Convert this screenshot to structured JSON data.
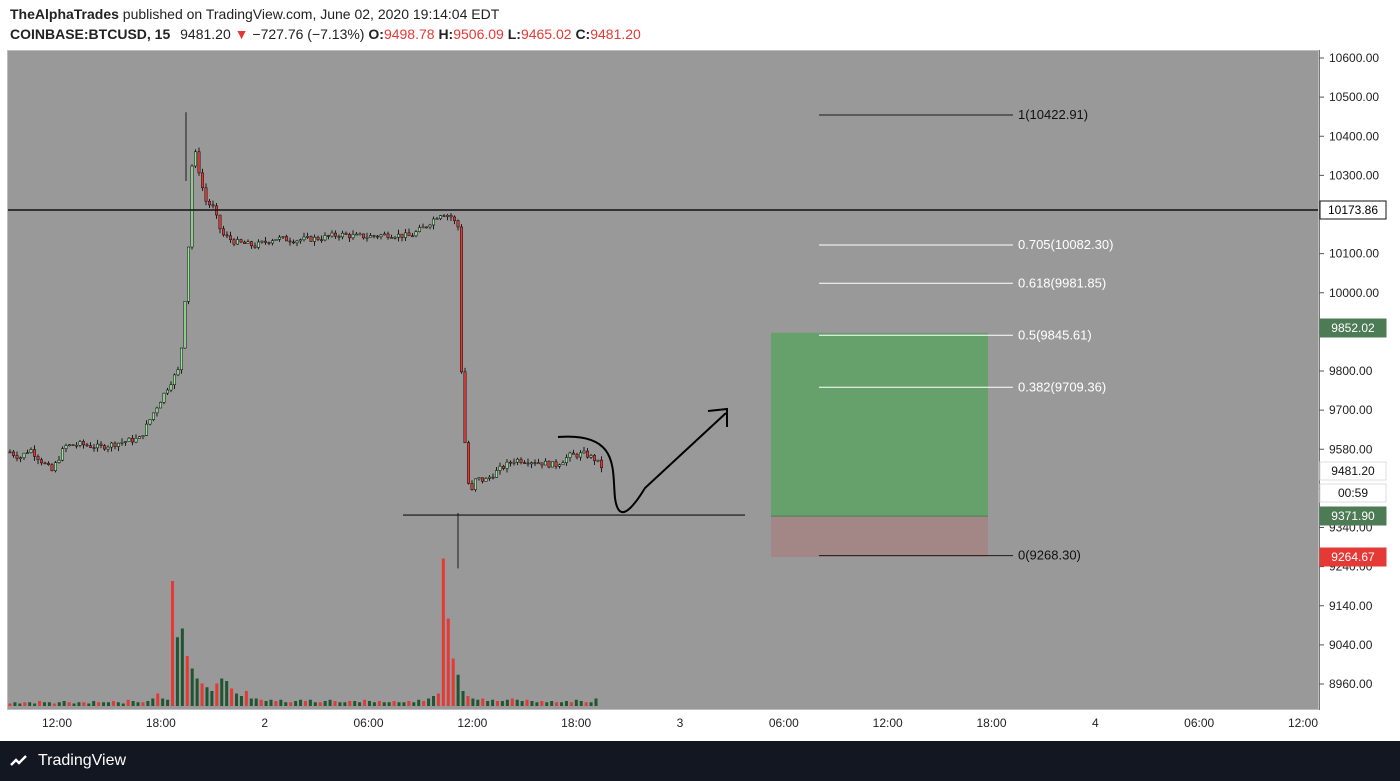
{
  "header": {
    "author": "TheAlphaTrades",
    "published_text": " published on TradingView.com, June 02, 2020 19:14:04 EDT",
    "symbol": "COINBASE:BTCUSD, 15",
    "last": "9481.20",
    "change": "−727.76 (−7.13%)",
    "o_label": "O:",
    "o_value": "9498.78",
    "h_label": "H:",
    "h_value": "9506.09",
    "l_label": "L:",
    "l_value": "9465.02",
    "c_label": "C:",
    "c_value": "9481.20"
  },
  "footer": {
    "brand": "TradingView"
  },
  "colors": {
    "background": "#999999",
    "up": "#1e5631",
    "down": "#e53935",
    "long_zone": "#66a16c",
    "stop_zone": "#a38787",
    "fib_line": "#ffffff"
  },
  "chart_data": {
    "type": "candlestick",
    "symbol": "COINBASE:BTCUSD",
    "interval": "15",
    "ylim": [
      8900,
      10630
    ],
    "y_ticks": [
      "10600.00",
      "10500.00",
      "10400.00",
      "10300.00",
      "10200.00",
      "10100.00",
      "10000.00",
      "9900.00",
      "9800.00",
      "9700.00",
      "9580.00",
      "9440.00",
      "9340.00",
      "9240.00",
      "9140.00",
      "9040.00",
      "8960.00"
    ],
    "x_ticks": [
      "12:00",
      "18:00",
      "2",
      "06:00",
      "12:00",
      "18:00",
      "3",
      "06:00",
      "12:00",
      "18:00",
      "4",
      "06:00",
      "12:00"
    ],
    "price_labels": [
      {
        "text": "10173.86",
        "style": "dark"
      },
      {
        "text": "9852.02",
        "style": "green"
      },
      {
        "text": "9481.20",
        "style": "white"
      },
      {
        "text": "00:59",
        "style": "white"
      },
      {
        "text": "9371.90",
        "style": "green"
      },
      {
        "text": "9264.67",
        "style": "red"
      }
    ],
    "horizontal_levels": [
      10173.86,
      9371.9
    ],
    "fib_levels": [
      {
        "label": "1(10422.91)",
        "price": 10422.91
      },
      {
        "label": "0.705(10082.30)",
        "price": 10082.3
      },
      {
        "label": "0.618(9981.85)",
        "price": 9981.85
      },
      {
        "label": "0.5(9845.61)",
        "price": 9845.61
      },
      {
        "label": "0.382(9709.36)",
        "price": 9709.36
      },
      {
        "label": "0(9268.30)",
        "price": 9268.3
      }
    ],
    "position": {
      "entry": 9371.9,
      "target": 9852.02,
      "stop": 9264.67
    },
    "ohlc_path": [
      [
        0,
        9540
      ],
      [
        10,
        9525
      ],
      [
        20,
        9548
      ],
      [
        30,
        9520
      ],
      [
        42,
        9490
      ],
      [
        55,
        9555
      ],
      [
        70,
        9560
      ],
      [
        90,
        9552
      ],
      [
        110,
        9565
      ],
      [
        130,
        9575
      ],
      [
        145,
        9650
      ],
      [
        160,
        9720
      ],
      [
        170,
        9760
      ],
      [
        178,
        10050
      ],
      [
        183,
        10350
      ],
      [
        188,
        10290
      ],
      [
        195,
        10200
      ],
      [
        203,
        10180
      ],
      [
        212,
        10110
      ],
      [
        225,
        10090
      ],
      [
        245,
        10080
      ],
      [
        265,
        10100
      ],
      [
        285,
        10095
      ],
      [
        310,
        10100
      ],
      [
        330,
        10110
      ],
      [
        345,
        10105
      ],
      [
        360,
        10105
      ],
      [
        380,
        10110
      ],
      [
        400,
        10105
      ],
      [
        415,
        10130
      ],
      [
        430,
        10165
      ],
      [
        440,
        10160
      ],
      [
        448,
        10130
      ],
      [
        452,
        9700
      ],
      [
        456,
        9520
      ],
      [
        460,
        9420
      ],
      [
        466,
        9470
      ],
      [
        475,
        9465
      ],
      [
        490,
        9495
      ],
      [
        505,
        9520
      ],
      [
        525,
        9515
      ],
      [
        545,
        9505
      ],
      [
        560,
        9530
      ],
      [
        575,
        9535
      ],
      [
        585,
        9520
      ],
      [
        592,
        9500
      ]
    ],
    "volume": [
      0.02,
      0.03,
      0.02,
      0.03,
      0.03,
      0.02,
      0.04,
      0.03,
      0.03,
      0.02,
      0.03,
      0.04,
      0.03,
      0.02,
      0.03,
      0.03,
      0.02,
      0.04,
      0.03,
      0.03,
      0.03,
      0.04,
      0.03,
      0.02,
      0.05,
      0.04,
      0.03,
      0.03,
      0.04,
      0.06,
      0.1,
      0.06,
      0.05,
      1.0,
      0.55,
      0.62,
      0.4,
      0.3,
      0.22,
      0.18,
      0.15,
      0.12,
      0.18,
      0.22,
      0.2,
      0.14,
      0.1,
      0.08,
      0.12,
      0.06,
      0.06,
      0.05,
      0.04,
      0.05,
      0.04,
      0.05,
      0.03,
      0.03,
      0.04,
      0.05,
      0.04,
      0.05,
      0.03,
      0.03,
      0.04,
      0.05,
      0.04,
      0.03,
      0.03,
      0.04,
      0.04,
      0.03,
      0.05,
      0.04,
      0.03,
      0.04,
      0.03,
      0.03,
      0.04,
      0.03,
      0.03,
      0.04,
      0.03,
      0.05,
      0.04,
      0.06,
      0.08,
      0.1,
      1.18,
      0.7,
      0.38,
      0.25,
      0.12,
      0.08,
      0.06,
      0.05,
      0.06,
      0.04,
      0.05,
      0.04,
      0.04,
      0.05,
      0.06,
      0.05,
      0.04,
      0.05,
      0.04,
      0.03,
      0.04,
      0.03,
      0.04,
      0.03,
      0.03,
      0.04,
      0.03,
      0.05,
      0.04,
      0.03,
      0.03,
      0.06
    ],
    "volume_max_ref": 1.2
  }
}
